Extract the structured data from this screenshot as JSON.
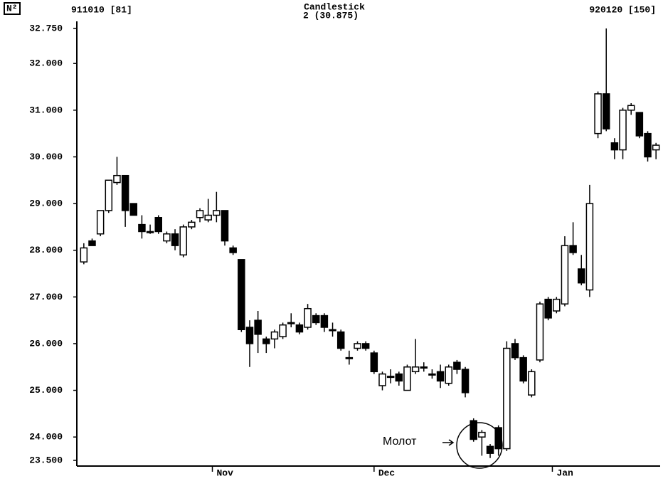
{
  "chart_data": {
    "type": "candlestick",
    "title": "Candlestick",
    "subtitle": "2 (30.875)",
    "badge": "N²",
    "left_label": "911010 [81]",
    "right_label": "920120 [150]",
    "annotation": "Молот",
    "ylim": [
      23.5,
      32.75
    ],
    "yticks": [
      {
        "value": 23.5,
        "label": "23.500"
      },
      {
        "value": 24,
        "label": "24.000"
      },
      {
        "value": 25,
        "label": "25.000"
      },
      {
        "value": 26,
        "label": "26.000"
      },
      {
        "value": 27,
        "label": "27.000"
      },
      {
        "value": 28,
        "label": "28.000"
      },
      {
        "value": 29,
        "label": "29.000"
      },
      {
        "value": 30,
        "label": "30.000"
      },
      {
        "value": 31,
        "label": "31.000"
      },
      {
        "value": 32,
        "label": "32.000"
      },
      {
        "value": 32.75,
        "label": "32.750"
      }
    ],
    "xlim": [
      0,
      70
    ],
    "xticks": [
      {
        "value": 16,
        "label": "Nov"
      },
      {
        "value": 35.5,
        "label": "Dec"
      },
      {
        "value": 57,
        "label": "Jan"
      }
    ],
    "open": [
      27.75,
      28.2,
      28.35,
      28.85,
      29.45,
      29.6,
      29.0,
      28.55,
      28.4,
      28.7,
      28.2,
      28.35,
      27.9,
      28.5,
      28.7,
      28.65,
      28.75,
      28.85,
      28.05,
      27.8,
      26.35,
      26.5,
      26.1,
      26.1,
      26.15,
      26.45,
      26.4,
      26.35,
      26.6,
      26.6,
      26.3,
      26.25,
      25.7,
      25.9,
      26.0,
      25.8,
      25.1,
      25.3,
      25.35,
      25.0,
      25.4,
      25.5,
      25.35,
      25.4,
      25.15,
      25.6,
      25.45,
      24.35,
      24.0,
      23.8,
      24.2,
      23.75,
      26.0,
      25.7,
      24.9,
      25.65,
      26.95,
      26.7,
      26.85,
      28.1,
      27.6,
      27.15,
      30.5,
      31.35,
      30.3,
      30.15,
      31.0,
      30.95,
      30.5,
      30.15
    ],
    "high": [
      28.15,
      28.25,
      28.85,
      29.5,
      30.0,
      29.6,
      29.0,
      28.75,
      28.55,
      28.75,
      28.4,
      28.45,
      28.55,
      28.65,
      28.9,
      29.1,
      29.25,
      28.85,
      28.1,
      27.8,
      26.5,
      26.7,
      26.15,
      26.3,
      26.45,
      26.65,
      26.45,
      26.85,
      26.65,
      26.65,
      26.45,
      26.3,
      25.85,
      26.05,
      26.05,
      25.85,
      25.4,
      25.45,
      25.4,
      25.55,
      26.1,
      25.6,
      25.45,
      25.55,
      25.55,
      25.65,
      25.5,
      24.4,
      24.15,
      23.85,
      24.25,
      26.05,
      26.1,
      25.75,
      25.45,
      26.9,
      27.0,
      27.0,
      28.3,
      28.6,
      27.9,
      29.4,
      31.4,
      32.75,
      30.4,
      31.05,
      31.15,
      30.95,
      30.55,
      30.3
    ],
    "low": [
      27.7,
      28.1,
      28.3,
      28.8,
      29.4,
      28.5,
      28.75,
      28.25,
      28.35,
      28.35,
      28.15,
      28.0,
      27.85,
      28.45,
      28.6,
      28.6,
      28.6,
      28.1,
      27.9,
      26.25,
      25.5,
      25.8,
      25.8,
      25.9,
      26.1,
      26.35,
      26.2,
      26.3,
      26.4,
      26.25,
      26.15,
      25.85,
      25.55,
      25.85,
      25.85,
      25.35,
      25.0,
      25.15,
      25.1,
      25.0,
      25.35,
      25.4,
      25.25,
      25.05,
      25.1,
      25.35,
      24.85,
      23.9,
      23.6,
      23.55,
      23.6,
      23.7,
      25.65,
      25.15,
      24.85,
      25.6,
      26.5,
      26.65,
      26.8,
      27.9,
      27.25,
      27.0,
      30.4,
      30.55,
      29.95,
      29.95,
      30.9,
      30.4,
      29.9,
      29.95
    ],
    "close": [
      28.05,
      28.1,
      28.85,
      29.5,
      29.6,
      28.85,
      28.75,
      28.4,
      28.4,
      28.4,
      28.35,
      28.1,
      28.5,
      28.6,
      28.85,
      28.75,
      28.85,
      28.2,
      27.95,
      26.3,
      26.0,
      26.2,
      26.0,
      26.25,
      26.4,
      26.45,
      26.25,
      26.75,
      26.45,
      26.35,
      26.3,
      25.9,
      25.7,
      26.0,
      25.9,
      25.4,
      25.35,
      25.3,
      25.2,
      25.5,
      25.5,
      25.5,
      25.35,
      25.2,
      25.5,
      25.45,
      24.95,
      23.95,
      24.1,
      23.65,
      23.75,
      25.9,
      25.7,
      25.2,
      25.4,
      26.85,
      26.55,
      26.95,
      28.1,
      27.95,
      27.3,
      29.0,
      31.35,
      30.6,
      30.15,
      31.0,
      31.1,
      30.45,
      30.0,
      30.25
    ],
    "color": "#000000"
  }
}
